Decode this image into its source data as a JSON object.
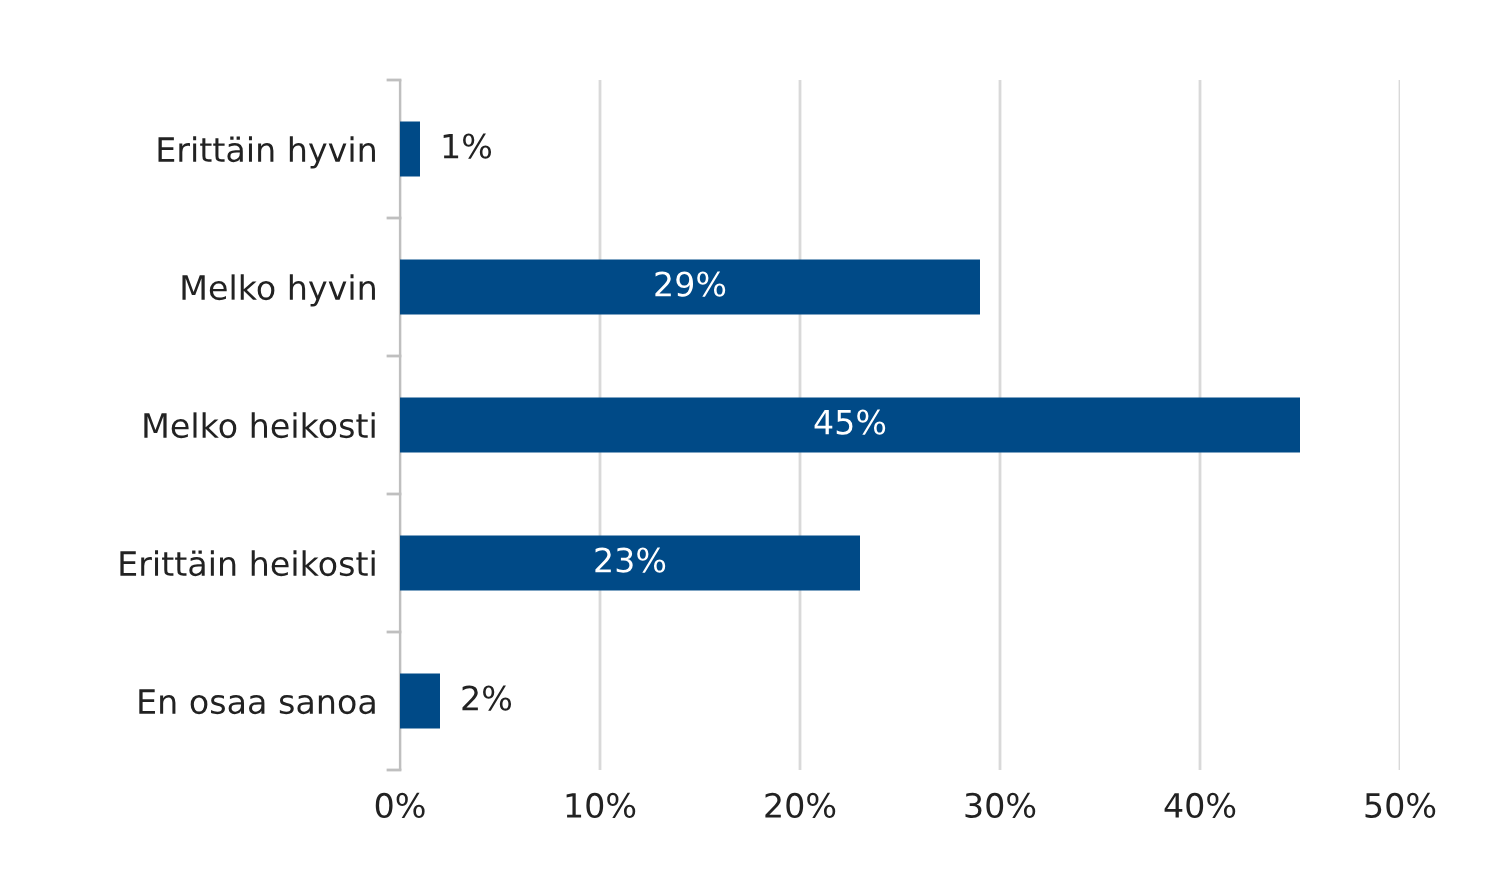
{
  "chart_data": {
    "type": "bar",
    "orientation": "horizontal",
    "categories": [
      "Erittäin hyvin",
      "Melko hyvin",
      "Melko heikosti",
      "Erittäin heikosti",
      "En osaa sanoa"
    ],
    "values": [
      1,
      29,
      45,
      23,
      2
    ],
    "value_labels": [
      "1%",
      "29%",
      "45%",
      "23%",
      "2%"
    ],
    "color": "#004a87",
    "xlim": [
      0,
      50
    ],
    "xticks": [
      {
        "value": 0,
        "label": "0%"
      },
      {
        "value": 10,
        "label": "10%"
      },
      {
        "value": 20,
        "label": "20%"
      },
      {
        "value": 30,
        "label": "30%"
      },
      {
        "value": 40,
        "label": "40%"
      },
      {
        "value": 50,
        "label": "50%"
      }
    ],
    "grid": "x",
    "legend": false
  }
}
